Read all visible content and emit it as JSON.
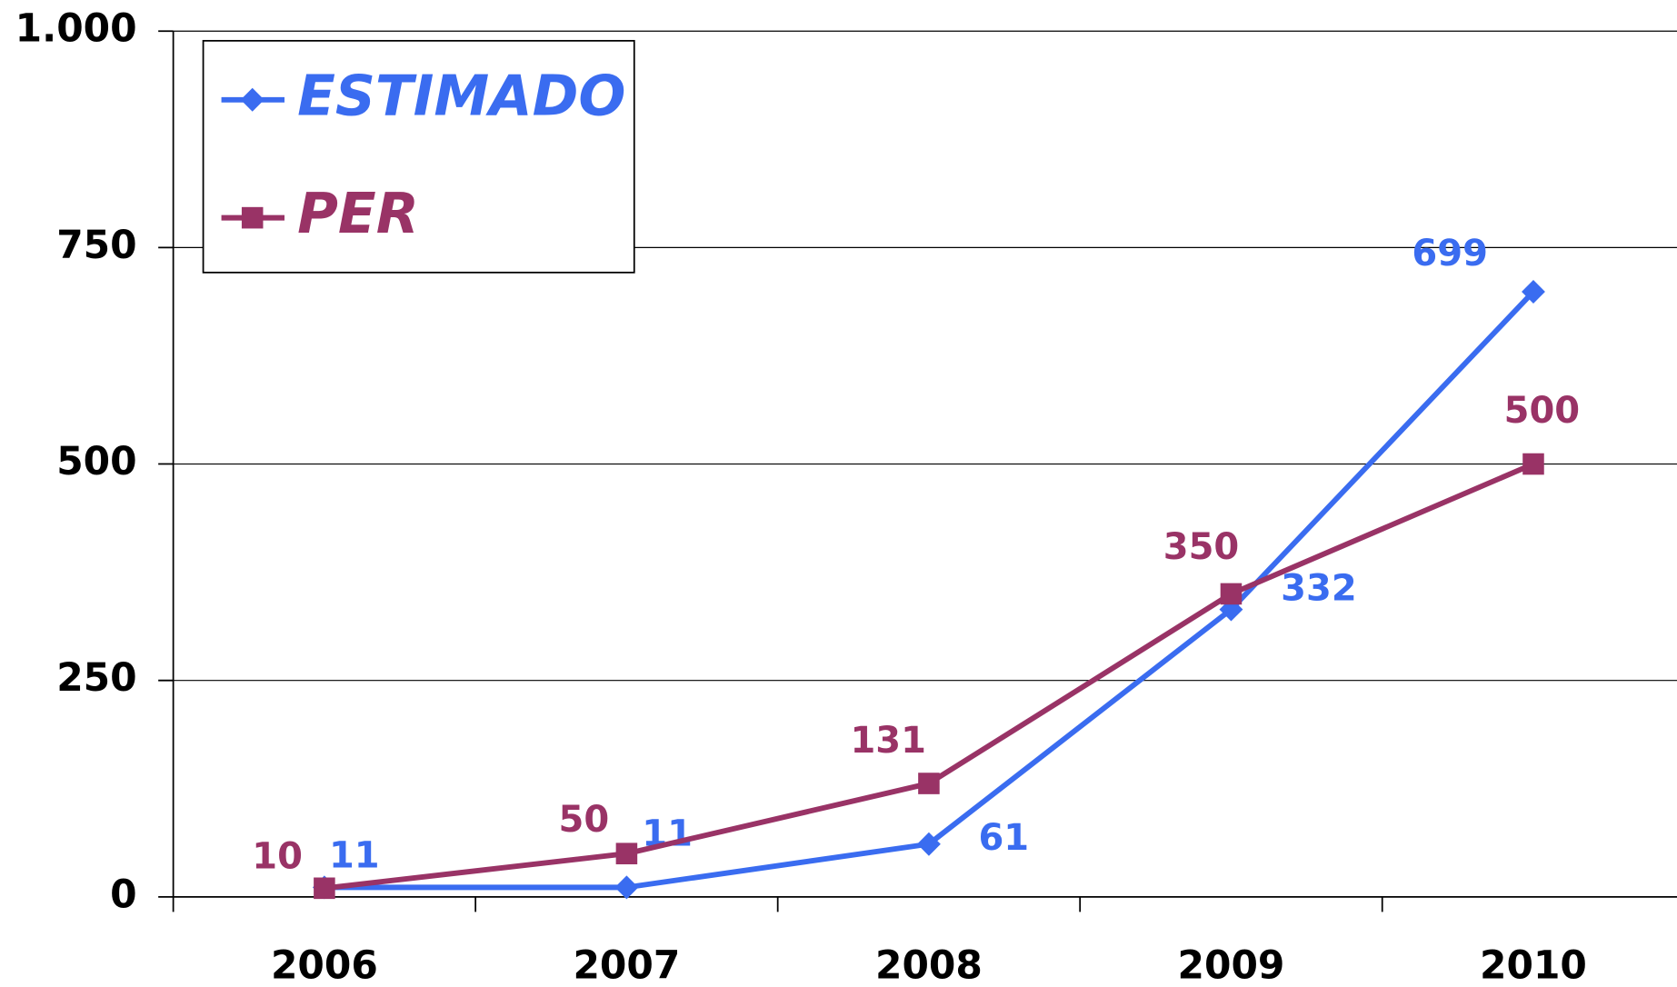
{
  "chart_data": {
    "type": "line",
    "categories": [
      "2006",
      "2007",
      "2008",
      "2009",
      "2010"
    ],
    "series": [
      {
        "name": "ESTIMADO",
        "color": "#3a6cf0",
        "marker": "diamond",
        "values": [
          11,
          11,
          61,
          332,
          699
        ]
      },
      {
        "name": "PER",
        "color": "#993366",
        "marker": "square",
        "values": [
          10,
          50,
          131,
          350,
          500
        ]
      }
    ],
    "ylim": [
      0,
      1000
    ],
    "yticks": [
      0,
      250,
      500,
      750,
      {
        "value": 1000,
        "label": "1.000"
      }
    ],
    "grid": true,
    "legend": "top-left"
  }
}
